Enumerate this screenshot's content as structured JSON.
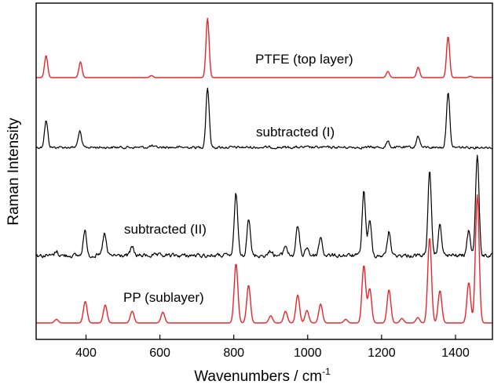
{
  "chart_data": {
    "type": "line",
    "title": "",
    "xlabel": "Wavenumbers / cm",
    "xlabel_superscript": "-1",
    "ylabel": "Raman Intensity",
    "xlim": [
      265,
      1500
    ],
    "x_ticks": [
      400,
      600,
      800,
      1000,
      1200,
      1400
    ],
    "x_tick_labels": [
      "400",
      "600",
      "800",
      "1000",
      "1200",
      "1400"
    ],
    "y_ticks_shown": false,
    "grid": false,
    "legend": "none",
    "colors": {
      "PTFE (top layer)": "#e8262a",
      "subtracted (I)": "#000000",
      "subtracted (II)": "#000000",
      "PP (sublayer)": "#e8262a",
      "axis": "#000000"
    },
    "series": [
      {
        "name": "PTFE (top layer)",
        "color": "#e8262a",
        "noisy": false,
        "baseline": 0,
        "peaks": [
          {
            "x": 292,
            "height": 0.32
          },
          {
            "x": 385,
            "height": 0.23
          },
          {
            "x": 577,
            "height": 0.03
          },
          {
            "x": 729,
            "height": 0.86
          },
          {
            "x": 1217,
            "height": 0.09
          },
          {
            "x": 1299,
            "height": 0.15
          },
          {
            "x": 1380,
            "height": 0.6
          },
          {
            "x": 1440,
            "height": 0.02
          }
        ]
      },
      {
        "name": "subtracted (I)",
        "color": "#000000",
        "noisy": true,
        "baseline": 0,
        "peaks": [
          {
            "x": 292,
            "height": 0.37
          },
          {
            "x": 383,
            "height": 0.22
          },
          {
            "x": 577,
            "height": 0.02
          },
          {
            "x": 729,
            "height": 0.83
          },
          {
            "x": 1217,
            "height": 0.08
          },
          {
            "x": 1299,
            "height": 0.16
          },
          {
            "x": 1380,
            "height": 0.76
          }
        ]
      },
      {
        "name": "subtracted (II)",
        "color": "#000000",
        "noisy": true,
        "baseline": 0,
        "peaks": [
          {
            "x": 320,
            "height": 0.05
          },
          {
            "x": 397,
            "height": 0.29
          },
          {
            "x": 450,
            "height": 0.26
          },
          {
            "x": 525,
            "height": 0.1
          },
          {
            "x": 806,
            "height": 0.73
          },
          {
            "x": 840,
            "height": 0.45
          },
          {
            "x": 900,
            "height": 0.06
          },
          {
            "x": 940,
            "height": 0.12
          },
          {
            "x": 973,
            "height": 0.35
          },
          {
            "x": 998,
            "height": 0.1
          },
          {
            "x": 1035,
            "height": 0.22
          },
          {
            "x": 1152,
            "height": 0.76
          },
          {
            "x": 1168,
            "height": 0.4
          },
          {
            "x": 1220,
            "height": 0.28
          },
          {
            "x": 1330,
            "height": 0.98
          },
          {
            "x": 1358,
            "height": 0.36
          },
          {
            "x": 1436,
            "height": 0.3
          },
          {
            "x": 1459,
            "height": 1.2
          }
        ]
      },
      {
        "name": "PP (sublayer)",
        "color": "#e8262a",
        "noisy": false,
        "baseline": 0,
        "peaks": [
          {
            "x": 320,
            "height": 0.04
          },
          {
            "x": 398,
            "height": 0.24
          },
          {
            "x": 452,
            "height": 0.2
          },
          {
            "x": 525,
            "height": 0.13
          },
          {
            "x": 608,
            "height": 0.12
          },
          {
            "x": 806,
            "height": 0.66
          },
          {
            "x": 840,
            "height": 0.42
          },
          {
            "x": 900,
            "height": 0.08
          },
          {
            "x": 940,
            "height": 0.13
          },
          {
            "x": 973,
            "height": 0.31
          },
          {
            "x": 998,
            "height": 0.14
          },
          {
            "x": 1035,
            "height": 0.21
          },
          {
            "x": 1103,
            "height": 0.04
          },
          {
            "x": 1152,
            "height": 0.64
          },
          {
            "x": 1168,
            "height": 0.38
          },
          {
            "x": 1220,
            "height": 0.37
          },
          {
            "x": 1255,
            "height": 0.05
          },
          {
            "x": 1298,
            "height": 0.06
          },
          {
            "x": 1330,
            "height": 0.95
          },
          {
            "x": 1358,
            "height": 0.36
          },
          {
            "x": 1436,
            "height": 0.45
          },
          {
            "x": 1459,
            "height": 1.42
          }
        ]
      }
    ]
  }
}
